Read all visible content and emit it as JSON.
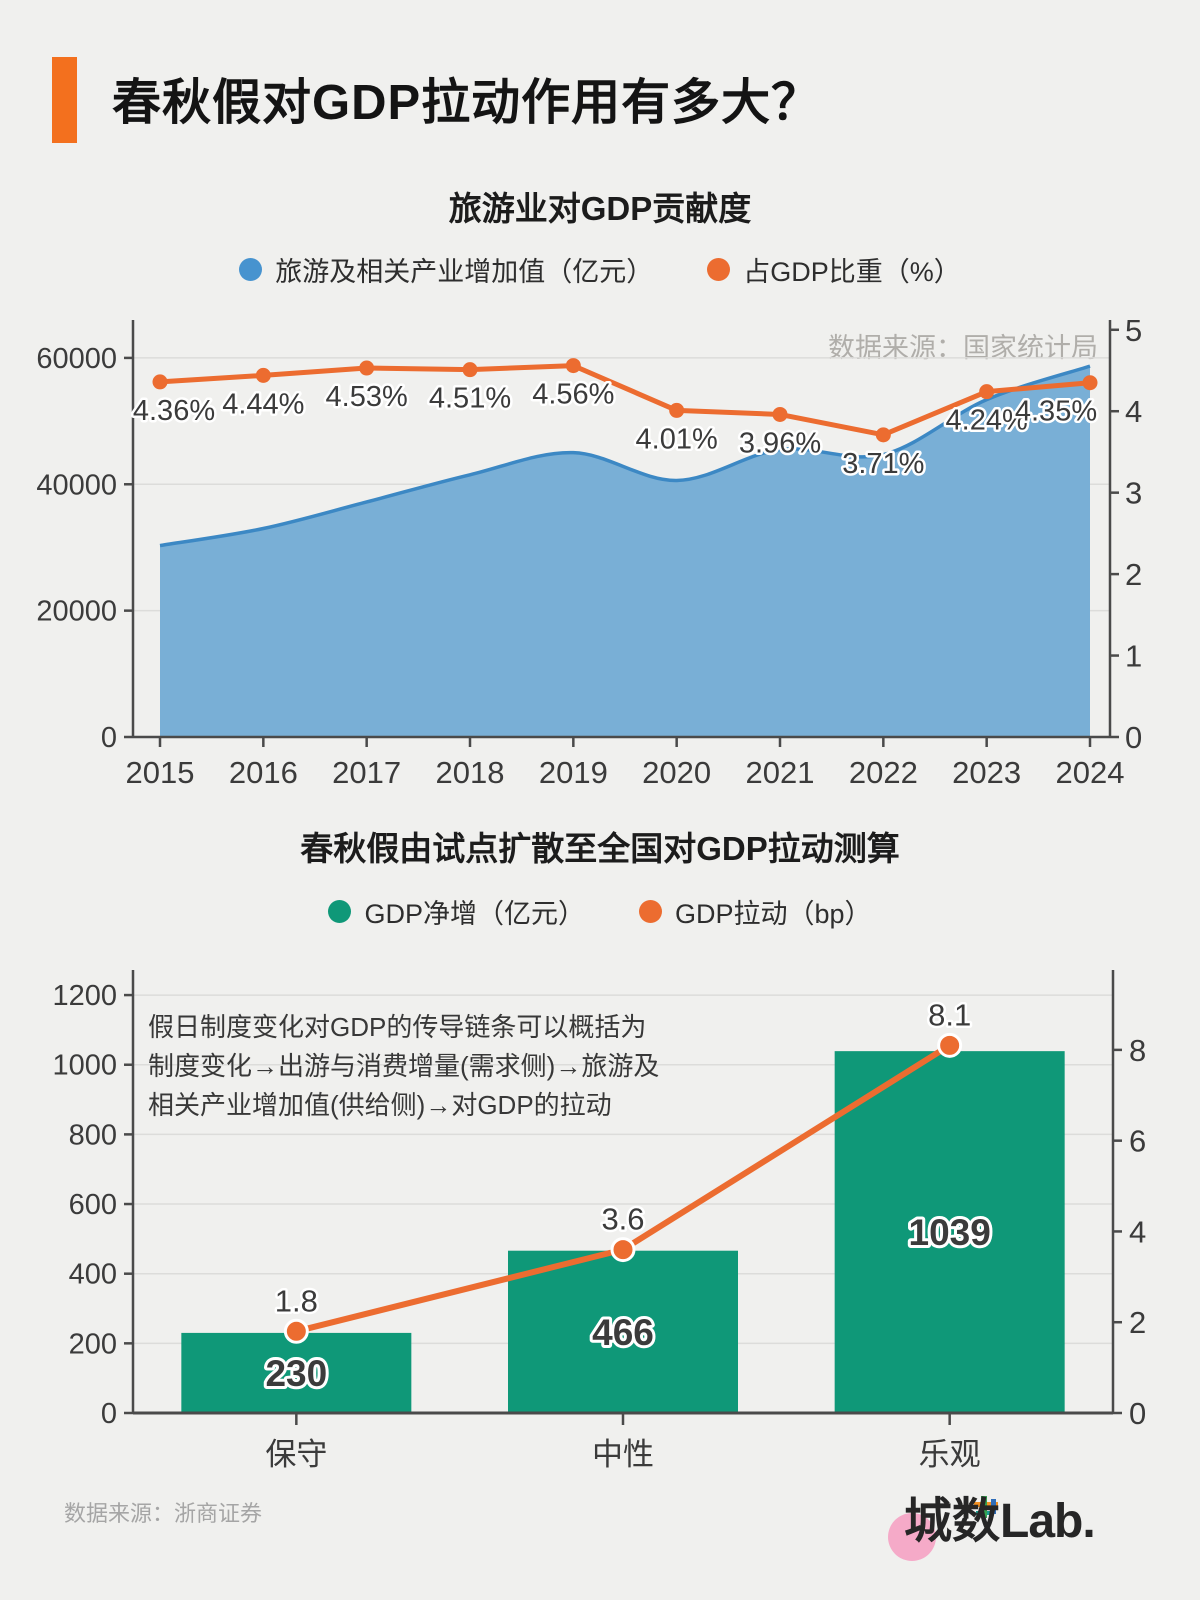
{
  "page": {
    "title": "春秋假对GDP拉动作用有多大？",
    "logo": {
      "cn": "城数",
      "en": "Lab."
    }
  },
  "colors": {
    "accent": "#f3701e",
    "blue": "#4793cf",
    "blue_fill": "#79afd6",
    "blue_stroke": "#3c88c4",
    "orange": "#ec6c30",
    "green": "#0f9878",
    "grid": "#dcdcda",
    "axis": "#4a4a4a",
    "label_dark": "#3b3b3b",
    "source_gray": "#b0aeaa",
    "pink": "#f5aac8"
  },
  "chart_data": [
    {
      "type": "area",
      "title": "旅游业对GDP贡献度",
      "source_note": "数据来源：国家统计局",
      "categories": [
        "2015",
        "2016",
        "2017",
        "2018",
        "2019",
        "2020",
        "2021",
        "2022",
        "2023",
        "2024"
      ],
      "series": [
        {
          "name": "旅游及相关产业增加值（亿元）",
          "type": "area",
          "axis": "left",
          "color": "#79afd6",
          "stroke": "#3c88c4",
          "values": [
            30300,
            33000,
            37200,
            41500,
            45000,
            40600,
            45500,
            44700,
            53400,
            58700
          ]
        },
        {
          "name": "占GDP比重（%）",
          "type": "line",
          "axis": "right",
          "color": "#ec6c30",
          "values": [
            4.36,
            4.44,
            4.53,
            4.51,
            4.56,
            4.01,
            3.96,
            3.71,
            4.24,
            4.35
          ],
          "labels": [
            "4.36%",
            "4.44%",
            "4.53%",
            "4.51%",
            "4.56%",
            "4.01%",
            "3.96%",
            "3.71%",
            "4.24%",
            "4.35%"
          ]
        }
      ],
      "left_axis": {
        "ticks": [
          0,
          20000,
          40000,
          60000
        ],
        "plot_max": 66000
      },
      "right_axis": {
        "ticks": [
          0,
          1,
          2,
          3,
          4,
          5
        ],
        "plot_max": 5.12
      },
      "grid": "horizontal",
      "legend_position": "top"
    },
    {
      "type": "bar",
      "title": "春秋假由试点扩散至全国对GDP拉动测算",
      "source_note": "数据来源：浙商证券",
      "categories": [
        "保守",
        "中性",
        "乐观"
      ],
      "series": [
        {
          "name": "GDP净增（亿元）",
          "type": "bar",
          "axis": "left",
          "color": "#0f9878",
          "values": [
            230,
            466,
            1039
          ],
          "labels": [
            "230",
            "466",
            "1039"
          ]
        },
        {
          "name": "GDP拉动（bp）",
          "type": "line",
          "axis": "right",
          "color": "#ec6c30",
          "values": [
            1.8,
            3.6,
            8.1
          ],
          "labels": [
            "1.8",
            "3.6",
            "8.1"
          ]
        }
      ],
      "left_axis": {
        "ticks": [
          0,
          200,
          400,
          600,
          800,
          1000,
          1200
        ],
        "plot_max": 1272
      },
      "right_axis": {
        "ticks": [
          0,
          2,
          4,
          6,
          8
        ],
        "plot_max": 9.76
      },
      "annotation_lines": [
        "假日制度变化对GDP的传导链条可以概括为",
        "制度变化→出游与消费增量(需求侧)→旅游及",
        "相关产业增加值(供给侧)→对GDP的拉动"
      ],
      "grid": "horizontal",
      "legend_position": "top"
    }
  ]
}
